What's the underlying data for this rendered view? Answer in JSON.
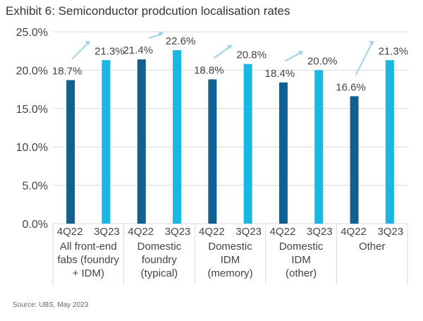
{
  "chart_data": {
    "type": "bar",
    "title": "Exhibit 6: Semiconductor prodcution localisation rates",
    "source": "Source: UBS, May 2023",
    "categories": [
      "All front-end fabs (foundry + IDM)",
      "Domestic foundry (typical)",
      "Domestic IDM (memory)",
      "Domestic IDM (other)",
      "Other"
    ],
    "category_lines": [
      [
        "All front-end",
        "fabs (foundry",
        "+ IDM)"
      ],
      [
        "Domestic",
        "foundry",
        "(typical)"
      ],
      [
        "Domestic",
        "IDM",
        "(memory)"
      ],
      [
        "Domestic",
        "IDM",
        "(other)"
      ],
      [
        "Other"
      ]
    ],
    "series": [
      {
        "name": "4Q22",
        "color": "#12608f",
        "values": [
          18.7,
          21.4,
          18.8,
          18.4,
          16.6
        ],
        "labels": [
          "18.7%",
          "21.4%",
          "18.8%",
          "18.4%",
          "16.6%"
        ]
      },
      {
        "name": "3Q23",
        "color": "#1ab6e4",
        "values": [
          21.3,
          22.6,
          20.8,
          20.0,
          21.3
        ],
        "labels": [
          "21.3%",
          "22.6%",
          "20.8%",
          "20.0%",
          "21.3%"
        ]
      }
    ],
    "yticks": [
      "0.0%",
      "5.0%",
      "10.0%",
      "15.0%",
      "20.0%",
      "25.0%"
    ],
    "ylim": [
      0,
      25
    ],
    "grid": true,
    "arrow_color": "#9fd3e6"
  }
}
